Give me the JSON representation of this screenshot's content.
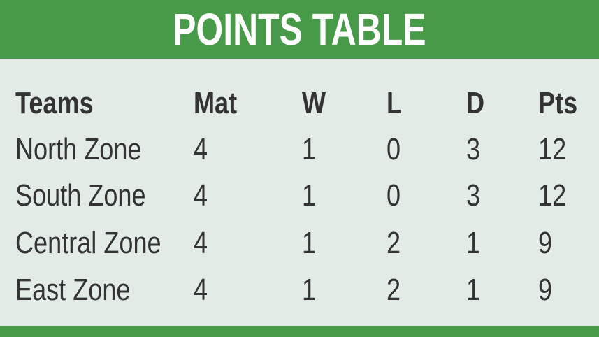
{
  "title": "POINTS TABLE",
  "colors": {
    "header_green": "#479a47",
    "background": "#e3ebe7",
    "text": "#333333"
  },
  "columns": [
    "Teams",
    "Mat",
    "W",
    "L",
    "D",
    "Pts"
  ],
  "rows": [
    [
      "North Zone",
      "4",
      "1",
      "0",
      "3",
      "12"
    ],
    [
      "South Zone",
      "4",
      "1",
      "0",
      "3",
      "12"
    ],
    [
      "Central Zone",
      "4",
      "1",
      "2",
      "1",
      "9"
    ],
    [
      "East Zone",
      "4",
      "1",
      "2",
      "1",
      "9"
    ]
  ]
}
